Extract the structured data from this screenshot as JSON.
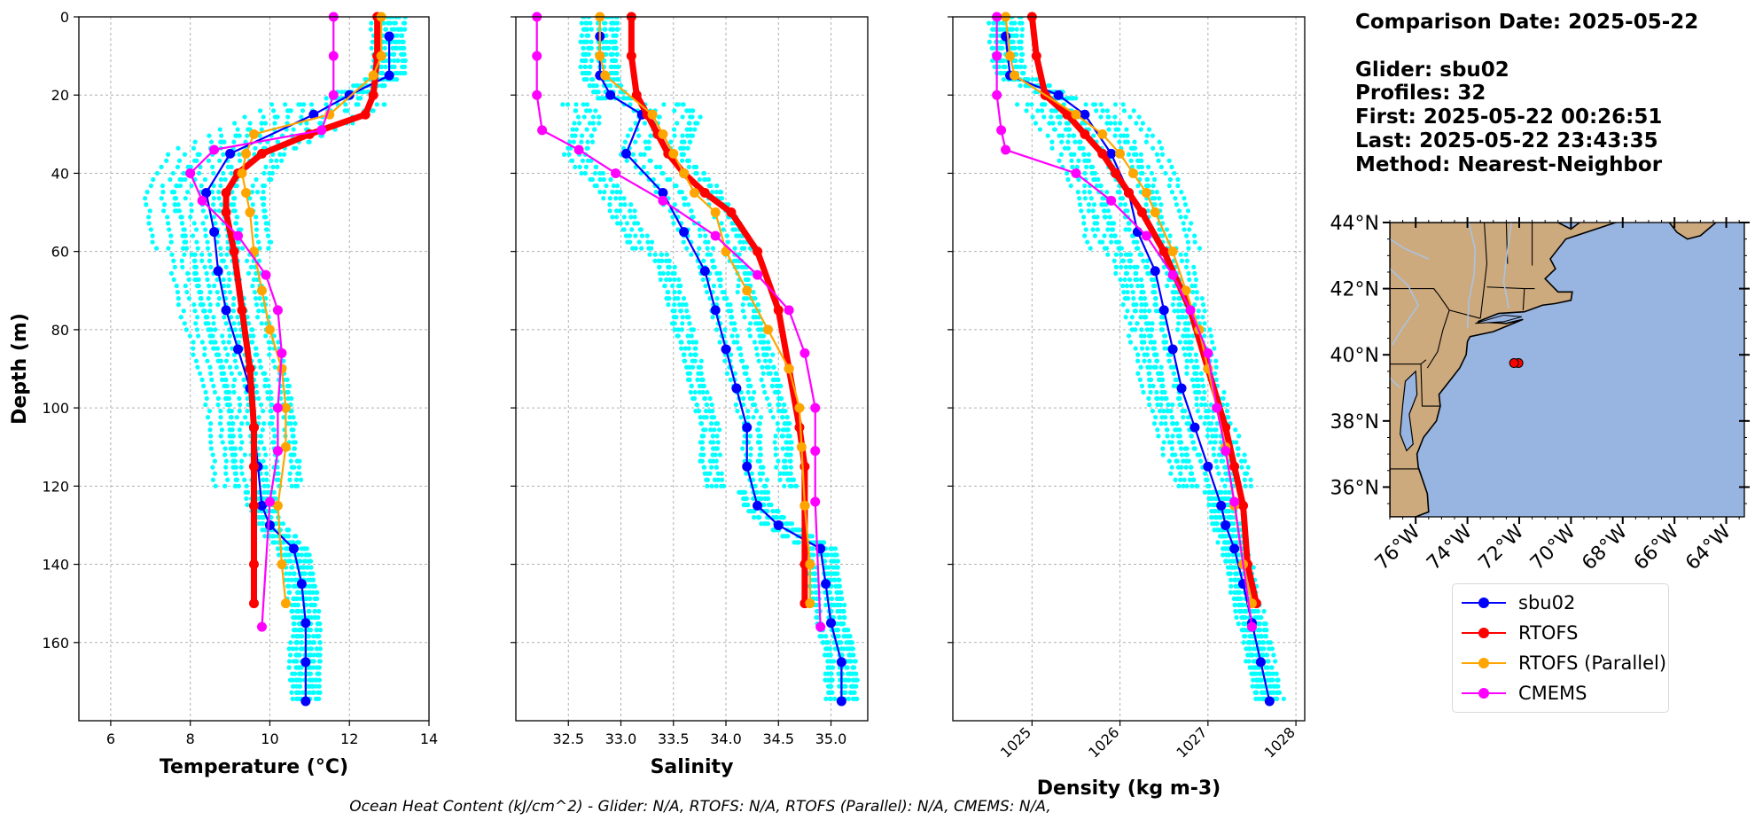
{
  "info": {
    "comparison_date": "Comparison Date: 2025-05-22",
    "glider": "Glider: sbu02",
    "profiles": "Profiles: 32",
    "first": "First: 2025-05-22 00:26:51",
    "last": "Last: 2025-05-22 23:43:35",
    "method": "Method: Nearest-Neighbor"
  },
  "footer": "Ocean Heat Content (kJ/cm^2) - Glider: N/A,  RTOFS: N/A,  RTOFS (Parallel): N/A,  CMEMS: N/A,",
  "legend": [
    {
      "label": "sbu02",
      "color": "#0000ff"
    },
    {
      "label": "RTOFS",
      "color": "#ff0000"
    },
    {
      "label": "RTOFS (Parallel)",
      "color": "#ffa500"
    },
    {
      "label": "CMEMS",
      "color": "#ff00ff"
    }
  ],
  "colors": {
    "glider_raw": "#00ffff",
    "land": "#cdaa7d",
    "ocean": "#98b4e0",
    "rivers": "#a8c4e8"
  },
  "chart_data": [
    {
      "type": "line",
      "xlabel": "Temperature (°C)",
      "ylabel": "Depth (m)",
      "xlim": [
        5.2,
        14.0
      ],
      "ylim": [
        180,
        0
      ],
      "xticks": [
        "6",
        "8",
        "10",
        "12",
        "14"
      ],
      "yticks": [
        "0",
        "20",
        "40",
        "60",
        "80",
        "100",
        "120",
        "140",
        "160"
      ],
      "grid": true,
      "series": [
        {
          "name": "sbu02",
          "x": [
            13.0,
            13.0,
            12.0,
            11.1,
            9.0,
            8.4,
            8.6,
            8.7,
            8.9,
            9.2,
            9.5,
            9.6,
            9.7,
            9.8,
            10.0,
            10.6,
            10.8,
            10.9,
            10.9,
            10.9
          ],
          "y": [
            5,
            15,
            20,
            25,
            35,
            45,
            55,
            65,
            75,
            85,
            95,
            105,
            115,
            125,
            130,
            136,
            145,
            155,
            165,
            175
          ]
        },
        {
          "name": "RTOFS",
          "x": [
            12.7,
            12.7,
            12.6,
            12.4,
            11.0,
            9.8,
            9.2,
            8.9,
            8.9,
            9.1,
            9.3,
            9.5,
            9.6,
            9.6,
            9.6,
            9.6,
            9.6
          ],
          "y": [
            0,
            10,
            20,
            25,
            30,
            35,
            40,
            45,
            50,
            60,
            75,
            90,
            105,
            115,
            125,
            140,
            150
          ]
        },
        {
          "name": "RTOFS (Parallel)",
          "x": [
            12.8,
            12.8,
            12.6,
            11.5,
            9.6,
            9.4,
            9.3,
            9.4,
            9.5,
            9.6,
            9.8,
            10.0,
            10.3,
            10.4,
            10.4,
            10.2,
            10.3,
            10.4
          ],
          "y": [
            0,
            10,
            15,
            25,
            30,
            35,
            40,
            45,
            50,
            60,
            70,
            80,
            90,
            100,
            110,
            125,
            140,
            150
          ]
        },
        {
          "name": "CMEMS",
          "x": [
            11.6,
            11.6,
            11.6,
            11.3,
            8.6,
            8.0,
            8.3,
            9.2,
            9.9,
            10.2,
            10.3,
            10.2,
            10.2,
            10.0,
            9.8
          ],
          "y": [
            0,
            10,
            20,
            29,
            34,
            40,
            47,
            56,
            66,
            75,
            86,
            100,
            111,
            124,
            156
          ]
        }
      ]
    },
    {
      "type": "line",
      "xlabel": "Salinity",
      "ylabel": "",
      "xlim": [
        32.0,
        35.35
      ],
      "ylim": [
        180,
        0
      ],
      "xticks": [
        "32.5",
        "33.0",
        "33.5",
        "34.0",
        "34.5",
        "35.0"
      ],
      "grid": true,
      "series": [
        {
          "name": "sbu02",
          "x": [
            32.8,
            32.8,
            32.9,
            33.2,
            33.05,
            33.4,
            33.6,
            33.8,
            33.9,
            34.0,
            34.1,
            34.2,
            34.2,
            34.3,
            34.5,
            34.9,
            34.95,
            35.0,
            35.1,
            35.1
          ],
          "y": [
            5,
            15,
            20,
            25,
            35,
            45,
            55,
            65,
            75,
            85,
            95,
            105,
            115,
            125,
            130,
            136,
            145,
            155,
            165,
            175
          ]
        },
        {
          "name": "RTOFS",
          "x": [
            33.1,
            33.1,
            33.15,
            33.25,
            33.35,
            33.45,
            33.6,
            33.8,
            34.05,
            34.3,
            34.5,
            34.6,
            34.7,
            34.75,
            34.75,
            34.75,
            34.75
          ],
          "y": [
            0,
            10,
            20,
            25,
            30,
            35,
            40,
            45,
            50,
            60,
            75,
            90,
            105,
            115,
            125,
            140,
            150
          ]
        },
        {
          "name": "RTOFS (Parallel)",
          "x": [
            32.8,
            32.8,
            32.85,
            33.3,
            33.4,
            33.5,
            33.6,
            33.7,
            33.9,
            34.0,
            34.2,
            34.4,
            34.6,
            34.7,
            34.72,
            34.75,
            34.8,
            34.8
          ],
          "y": [
            0,
            10,
            15,
            25,
            30,
            35,
            40,
            45,
            50,
            60,
            70,
            80,
            90,
            100,
            110,
            125,
            140,
            150
          ]
        },
        {
          "name": "CMEMS",
          "x": [
            32.2,
            32.2,
            32.2,
            32.25,
            32.6,
            32.95,
            33.4,
            33.9,
            34.3,
            34.6,
            34.75,
            34.85,
            34.85,
            34.85,
            34.9
          ],
          "y": [
            0,
            10,
            20,
            29,
            34,
            40,
            47,
            56,
            66,
            75,
            86,
            100,
            111,
            124,
            156
          ]
        }
      ]
    },
    {
      "type": "line",
      "xlabel": "Density (kg m-3)",
      "ylabel": "",
      "xlim": [
        1024.1,
        1028.1
      ],
      "ylim": [
        180,
        0
      ],
      "xticks": [
        "1025",
        "1026",
        "1027",
        "1028"
      ],
      "grid": true,
      "series": [
        {
          "name": "sbu02",
          "x": [
            1024.7,
            1024.75,
            1025.3,
            1025.6,
            1025.9,
            1026.1,
            1026.2,
            1026.4,
            1026.5,
            1026.6,
            1026.7,
            1026.85,
            1027.0,
            1027.15,
            1027.2,
            1027.3,
            1027.4,
            1027.5,
            1027.6,
            1027.7
          ],
          "y": [
            5,
            15,
            20,
            25,
            35,
            45,
            55,
            65,
            75,
            85,
            95,
            105,
            115,
            125,
            130,
            136,
            145,
            155,
            165,
            175
          ]
        },
        {
          "name": "RTOFS",
          "x": [
            1025.0,
            1025.05,
            1025.15,
            1025.4,
            1025.6,
            1025.8,
            1025.95,
            1026.1,
            1026.25,
            1026.5,
            1026.8,
            1027.0,
            1027.2,
            1027.3,
            1027.4,
            1027.45,
            1027.55
          ],
          "y": [
            0,
            10,
            20,
            25,
            30,
            35,
            40,
            45,
            50,
            60,
            75,
            90,
            105,
            115,
            125,
            140,
            150
          ]
        },
        {
          "name": "RTOFS (Parallel)",
          "x": [
            1024.7,
            1024.75,
            1024.8,
            1025.5,
            1025.8,
            1026.0,
            1026.15,
            1026.3,
            1026.4,
            1026.6,
            1026.75,
            1026.9,
            1027.0,
            1027.1,
            1027.2,
            1027.3,
            1027.4,
            1027.5
          ],
          "y": [
            0,
            10,
            15,
            25,
            30,
            35,
            40,
            45,
            50,
            60,
            70,
            80,
            90,
            100,
            110,
            125,
            140,
            150
          ]
        },
        {
          "name": "CMEMS",
          "x": [
            1024.6,
            1024.6,
            1024.6,
            1024.65,
            1024.7,
            1025.5,
            1025.9,
            1026.3,
            1026.6,
            1026.8,
            1027.0,
            1027.1,
            1027.2,
            1027.3,
            1027.5
          ],
          "y": [
            0,
            10,
            20,
            29,
            34,
            40,
            47,
            56,
            66,
            75,
            86,
            100,
            111,
            124,
            156
          ]
        }
      ]
    }
  ],
  "map": {
    "lat_labels": [
      "44°N",
      "42°N",
      "40°N",
      "38°N",
      "36°N"
    ],
    "lon_labels": [
      "76°W",
      "74°W",
      "72°W",
      "70°W",
      "68°W",
      "66°W",
      "64°W"
    ],
    "lat_range": [
      35.1,
      44.0
    ],
    "lon_range": [
      -77.0,
      -63.3
    ],
    "glider_position": {
      "lon": -72.2,
      "lat": 39.75
    }
  }
}
